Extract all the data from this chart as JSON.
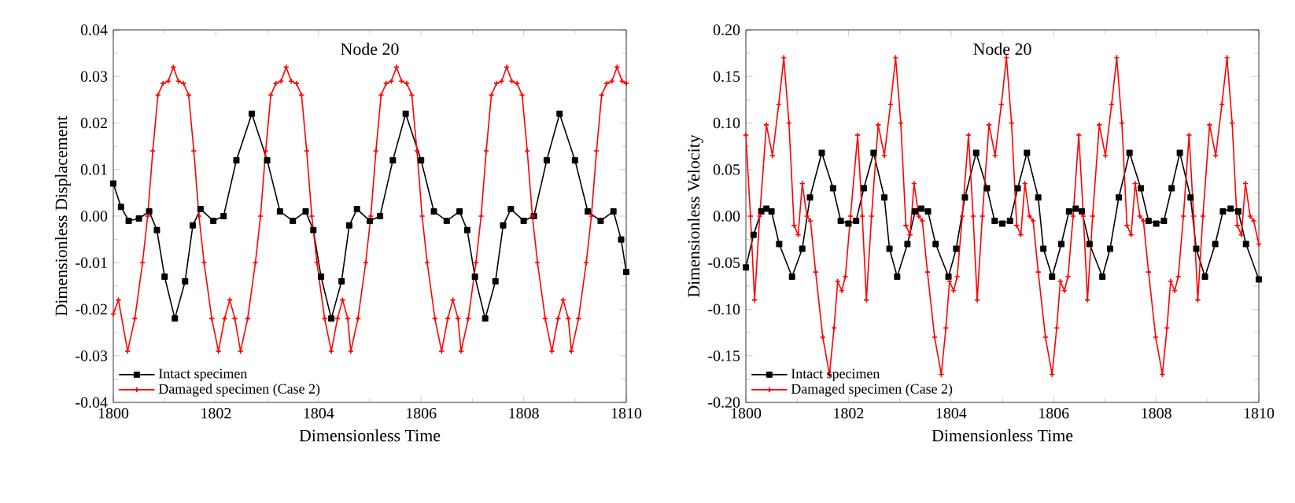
{
  "chart_data": [
    {
      "type": "line",
      "title": "Node 20",
      "xlabel": "Dimensionless Time",
      "ylabel": "Dimensionless Displacement",
      "xlim": [
        1800,
        1810
      ],
      "ylim": [
        -0.04,
        0.04
      ],
      "xticks": [
        1800,
        1802,
        1804,
        1806,
        1808,
        1810
      ],
      "yticks": [
        -0.04,
        -0.03,
        -0.02,
        -0.01,
        {
          "value": 0,
          "label": "0.00"
        },
        0.01,
        0.02,
        0.03,
        0.04
      ],
      "legend": "bottom left",
      "grid": false,
      "series": [
        {
          "name": "Intact specimen",
          "color": "#000000",
          "marker": "square",
          "x": [
            1800.0,
            1800.15,
            1800.3,
            1800.5,
            1800.7,
            1800.85,
            1801.0,
            1801.2,
            1801.4,
            1801.55,
            1801.7,
            1801.95,
            1802.15,
            1802.4,
            1802.7,
            1803.0,
            1803.25,
            1803.5,
            1803.75,
            1803.9,
            1804.05,
            1804.25,
            1804.45,
            1804.6,
            1804.75,
            1805.0,
            1805.2,
            1805.45,
            1805.7,
            1806.0,
            1806.25,
            1806.5,
            1806.75,
            1806.9,
            1807.05,
            1807.25,
            1807.45,
            1807.6,
            1807.75,
            1808.0,
            1808.2,
            1808.45,
            1808.7,
            1809.0,
            1809.25,
            1809.5,
            1809.75,
            1809.9,
            1810.0
          ],
          "values": [
            0.007,
            0.002,
            -0.001,
            -0.0005,
            0.001,
            -0.003,
            -0.013,
            -0.022,
            -0.014,
            -0.002,
            0.0015,
            -0.001,
            0.0,
            0.012,
            0.022,
            0.012,
            0.001,
            -0.001,
            0.001,
            -0.003,
            -0.013,
            -0.022,
            -0.014,
            -0.002,
            0.0015,
            -0.001,
            0.0,
            0.012,
            0.022,
            0.012,
            0.001,
            -0.001,
            0.001,
            -0.003,
            -0.013,
            -0.022,
            -0.014,
            -0.002,
            0.0015,
            -0.001,
            0.0,
            0.012,
            0.022,
            0.012,
            0.001,
            -0.001,
            0.001,
            -0.005,
            -0.012
          ]
        },
        {
          "name": "Damaged specimen (Case 2)",
          "color": "#ff0000",
          "marker": "cross",
          "x": [
            1800.0,
            1800.1,
            1800.28,
            1800.42,
            1800.57,
            1800.67,
            1800.77,
            1800.87,
            1800.97,
            1801.07,
            1801.17,
            1801.27,
            1801.37,
            1801.47,
            1801.57,
            1801.67,
            1801.77,
            1801.92,
            1802.05,
            1802.17,
            1802.27,
            1802.37,
            1802.48,
            1802.62,
            1802.77,
            1802.87,
            1802.97,
            1803.07,
            1803.17,
            1803.27,
            1803.37,
            1803.47,
            1803.57,
            1803.67,
            1803.77,
            1803.87,
            1803.97,
            1804.12,
            1804.25,
            1804.37,
            1804.47,
            1804.57,
            1804.63,
            1804.77,
            1804.92,
            1805.02,
            1805.12,
            1805.22,
            1805.32,
            1805.42,
            1805.52,
            1805.62,
            1805.72,
            1805.82,
            1805.92,
            1806.02,
            1806.12,
            1806.27,
            1806.4,
            1806.52,
            1806.62,
            1806.72,
            1806.78,
            1806.92,
            1807.07,
            1807.17,
            1807.27,
            1807.37,
            1807.47,
            1807.57,
            1807.67,
            1807.77,
            1807.87,
            1807.97,
            1808.07,
            1808.17,
            1808.27,
            1808.42,
            1808.55,
            1808.67,
            1808.77,
            1808.87,
            1808.93,
            1809.07,
            1809.22,
            1809.32,
            1809.42,
            1809.52,
            1809.62,
            1809.72,
            1809.82,
            1809.92,
            1810.0
          ],
          "values": [
            -0.021,
            -0.018,
            -0.029,
            -0.022,
            -0.01,
            0.0,
            0.014,
            0.026,
            0.0285,
            0.029,
            0.032,
            0.029,
            0.0285,
            0.026,
            0.014,
            0.0,
            -0.01,
            -0.022,
            -0.029,
            -0.022,
            -0.018,
            -0.022,
            -0.029,
            -0.022,
            -0.01,
            0.0,
            0.014,
            0.026,
            0.0285,
            0.029,
            0.032,
            0.029,
            0.0285,
            0.026,
            0.014,
            0.0,
            -0.01,
            -0.022,
            -0.029,
            -0.022,
            -0.018,
            -0.022,
            -0.029,
            -0.022,
            -0.01,
            0.0,
            0.014,
            0.026,
            0.0285,
            0.029,
            0.032,
            0.029,
            0.0285,
            0.026,
            0.014,
            0.0,
            -0.01,
            -0.022,
            -0.029,
            -0.022,
            -0.018,
            -0.022,
            -0.029,
            -0.022,
            -0.01,
            0.0,
            0.014,
            0.026,
            0.0285,
            0.029,
            0.032,
            0.029,
            0.0285,
            0.026,
            0.014,
            0.0,
            -0.01,
            -0.022,
            -0.029,
            -0.022,
            -0.018,
            -0.022,
            -0.029,
            -0.022,
            -0.01,
            0.0,
            0.014,
            0.026,
            0.0285,
            0.029,
            0.032,
            0.029,
            0.0285
          ]
        }
      ]
    },
    {
      "type": "line",
      "title": "Node 20",
      "xlabel": "Dimensionless Time",
      "ylabel": "Dimensionless Velocity",
      "xlim": [
        1800,
        1810
      ],
      "ylim": [
        -0.2,
        0.2
      ],
      "xticks": [
        1800,
        1802,
        1804,
        1806,
        1808,
        1810
      ],
      "yticks": [
        {
          "value": -0.2,
          "label": "-0.20"
        },
        -0.15,
        {
          "value": -0.1,
          "label": "-0.10"
        },
        -0.05,
        {
          "value": 0,
          "label": "0.00"
        },
        0.05,
        {
          "value": 0.1,
          "label": "0.10"
        },
        0.15,
        {
          "value": 0.2,
          "label": "0.20"
        }
      ],
      "legend": "bottom left",
      "grid": false,
      "series": [
        {
          "name": "Intact specimen",
          "color": "#000000",
          "marker": "square",
          "x": [
            1800.0,
            1800.15,
            1800.3,
            1800.4,
            1800.5,
            1800.65,
            1800.9,
            1801.1,
            1801.25,
            1801.48,
            1801.7,
            1801.85,
            1802.0,
            1802.15,
            1802.3,
            1802.49,
            1802.7,
            1802.8,
            1802.95,
            1803.15,
            1803.3,
            1803.42,
            1803.55,
            1803.7,
            1803.95,
            1804.1,
            1804.27,
            1804.49,
            1804.7,
            1804.85,
            1805.0,
            1805.15,
            1805.3,
            1805.48,
            1805.7,
            1805.8,
            1805.97,
            1806.15,
            1806.3,
            1806.43,
            1806.55,
            1806.7,
            1806.95,
            1807.1,
            1807.27,
            1807.48,
            1807.7,
            1807.85,
            1808.0,
            1808.15,
            1808.3,
            1808.46,
            1808.67,
            1808.78,
            1808.95,
            1809.15,
            1809.3,
            1809.45,
            1809.6,
            1809.75,
            1810.0
          ],
          "values": [
            -0.055,
            -0.02,
            0.005,
            0.008,
            0.005,
            -0.03,
            -0.065,
            -0.035,
            0.02,
            0.068,
            0.03,
            -0.005,
            -0.008,
            -0.005,
            0.03,
            0.068,
            0.02,
            -0.035,
            -0.065,
            -0.03,
            0.005,
            0.008,
            0.005,
            -0.03,
            -0.065,
            -0.035,
            0.02,
            0.068,
            0.03,
            -0.005,
            -0.008,
            -0.005,
            0.03,
            0.068,
            0.02,
            -0.035,
            -0.065,
            -0.03,
            0.005,
            0.008,
            0.005,
            -0.03,
            -0.065,
            -0.035,
            0.02,
            0.068,
            0.03,
            -0.005,
            -0.008,
            -0.005,
            0.03,
            0.068,
            0.02,
            -0.035,
            -0.065,
            -0.03,
            0.005,
            0.008,
            0.005,
            -0.03,
            -0.068
          ]
        },
        {
          "name": "Damaged specimen (Case 2)",
          "color": "#ff0000",
          "marker": "cross",
          "x": [
            1800.0,
            1800.09,
            1800.17,
            1800.27,
            1800.4,
            1800.52,
            1800.64,
            1800.74,
            1800.84,
            1800.94,
            1801.02,
            1801.1,
            1801.19,
            1801.26,
            1801.36,
            1801.5,
            1801.63,
            1801.72,
            1801.79,
            1801.87,
            1801.94,
            1802.04,
            1802.18,
            1802.27,
            1802.35,
            1802.45,
            1802.58,
            1802.7,
            1802.82,
            1802.92,
            1803.02,
            1803.12,
            1803.2,
            1803.28,
            1803.37,
            1803.44,
            1803.54,
            1803.68,
            1803.81,
            1803.9,
            1803.97,
            1804.05,
            1804.12,
            1804.22,
            1804.34,
            1804.43,
            1804.51,
            1804.61,
            1804.74,
            1804.86,
            1804.98,
            1805.08,
            1805.18,
            1805.28,
            1805.36,
            1805.44,
            1805.53,
            1805.6,
            1805.7,
            1805.84,
            1805.97,
            1806.06,
            1806.13,
            1806.21,
            1806.28,
            1806.38,
            1806.49,
            1806.58,
            1806.66,
            1806.76,
            1806.89,
            1807.01,
            1807.13,
            1807.23,
            1807.33,
            1807.43,
            1807.51,
            1807.59,
            1807.68,
            1807.75,
            1807.85,
            1807.99,
            1808.12,
            1808.21,
            1808.28,
            1808.36,
            1808.43,
            1808.53,
            1808.64,
            1808.73,
            1808.81,
            1808.91,
            1809.04,
            1809.16,
            1809.28,
            1809.38,
            1809.48,
            1809.58,
            1809.66,
            1809.74,
            1809.83,
            1809.9,
            1810.0
          ],
          "values": [
            0.087,
            0.0,
            -0.09,
            0.0,
            0.098,
            0.065,
            0.12,
            0.17,
            0.1,
            -0.01,
            -0.02,
            0.035,
            0.0,
            -0.005,
            -0.06,
            -0.13,
            -0.17,
            -0.12,
            -0.07,
            -0.08,
            -0.065,
            0.0,
            0.087,
            0.0,
            -0.09,
            0.0,
            0.098,
            0.065,
            0.12,
            0.17,
            0.1,
            -0.01,
            -0.02,
            0.035,
            0.0,
            -0.005,
            -0.06,
            -0.13,
            -0.17,
            -0.12,
            -0.07,
            -0.08,
            -0.065,
            0.0,
            0.087,
            0.0,
            -0.09,
            0.0,
            0.098,
            0.065,
            0.12,
            0.17,
            0.1,
            -0.01,
            -0.02,
            0.035,
            0.0,
            -0.005,
            -0.06,
            -0.13,
            -0.17,
            -0.12,
            -0.07,
            -0.08,
            -0.065,
            0.0,
            0.087,
            0.0,
            -0.09,
            0.0,
            0.098,
            0.065,
            0.12,
            0.17,
            0.1,
            -0.01,
            -0.02,
            0.035,
            0.0,
            -0.005,
            -0.06,
            -0.13,
            -0.17,
            -0.12,
            -0.07,
            -0.08,
            -0.065,
            0.0,
            0.087,
            0.0,
            -0.09,
            0.0,
            0.098,
            0.065,
            0.12,
            0.17,
            0.1,
            -0.01,
            -0.02,
            0.035,
            0.0,
            -0.005,
            -0.03
          ]
        }
      ]
    }
  ]
}
